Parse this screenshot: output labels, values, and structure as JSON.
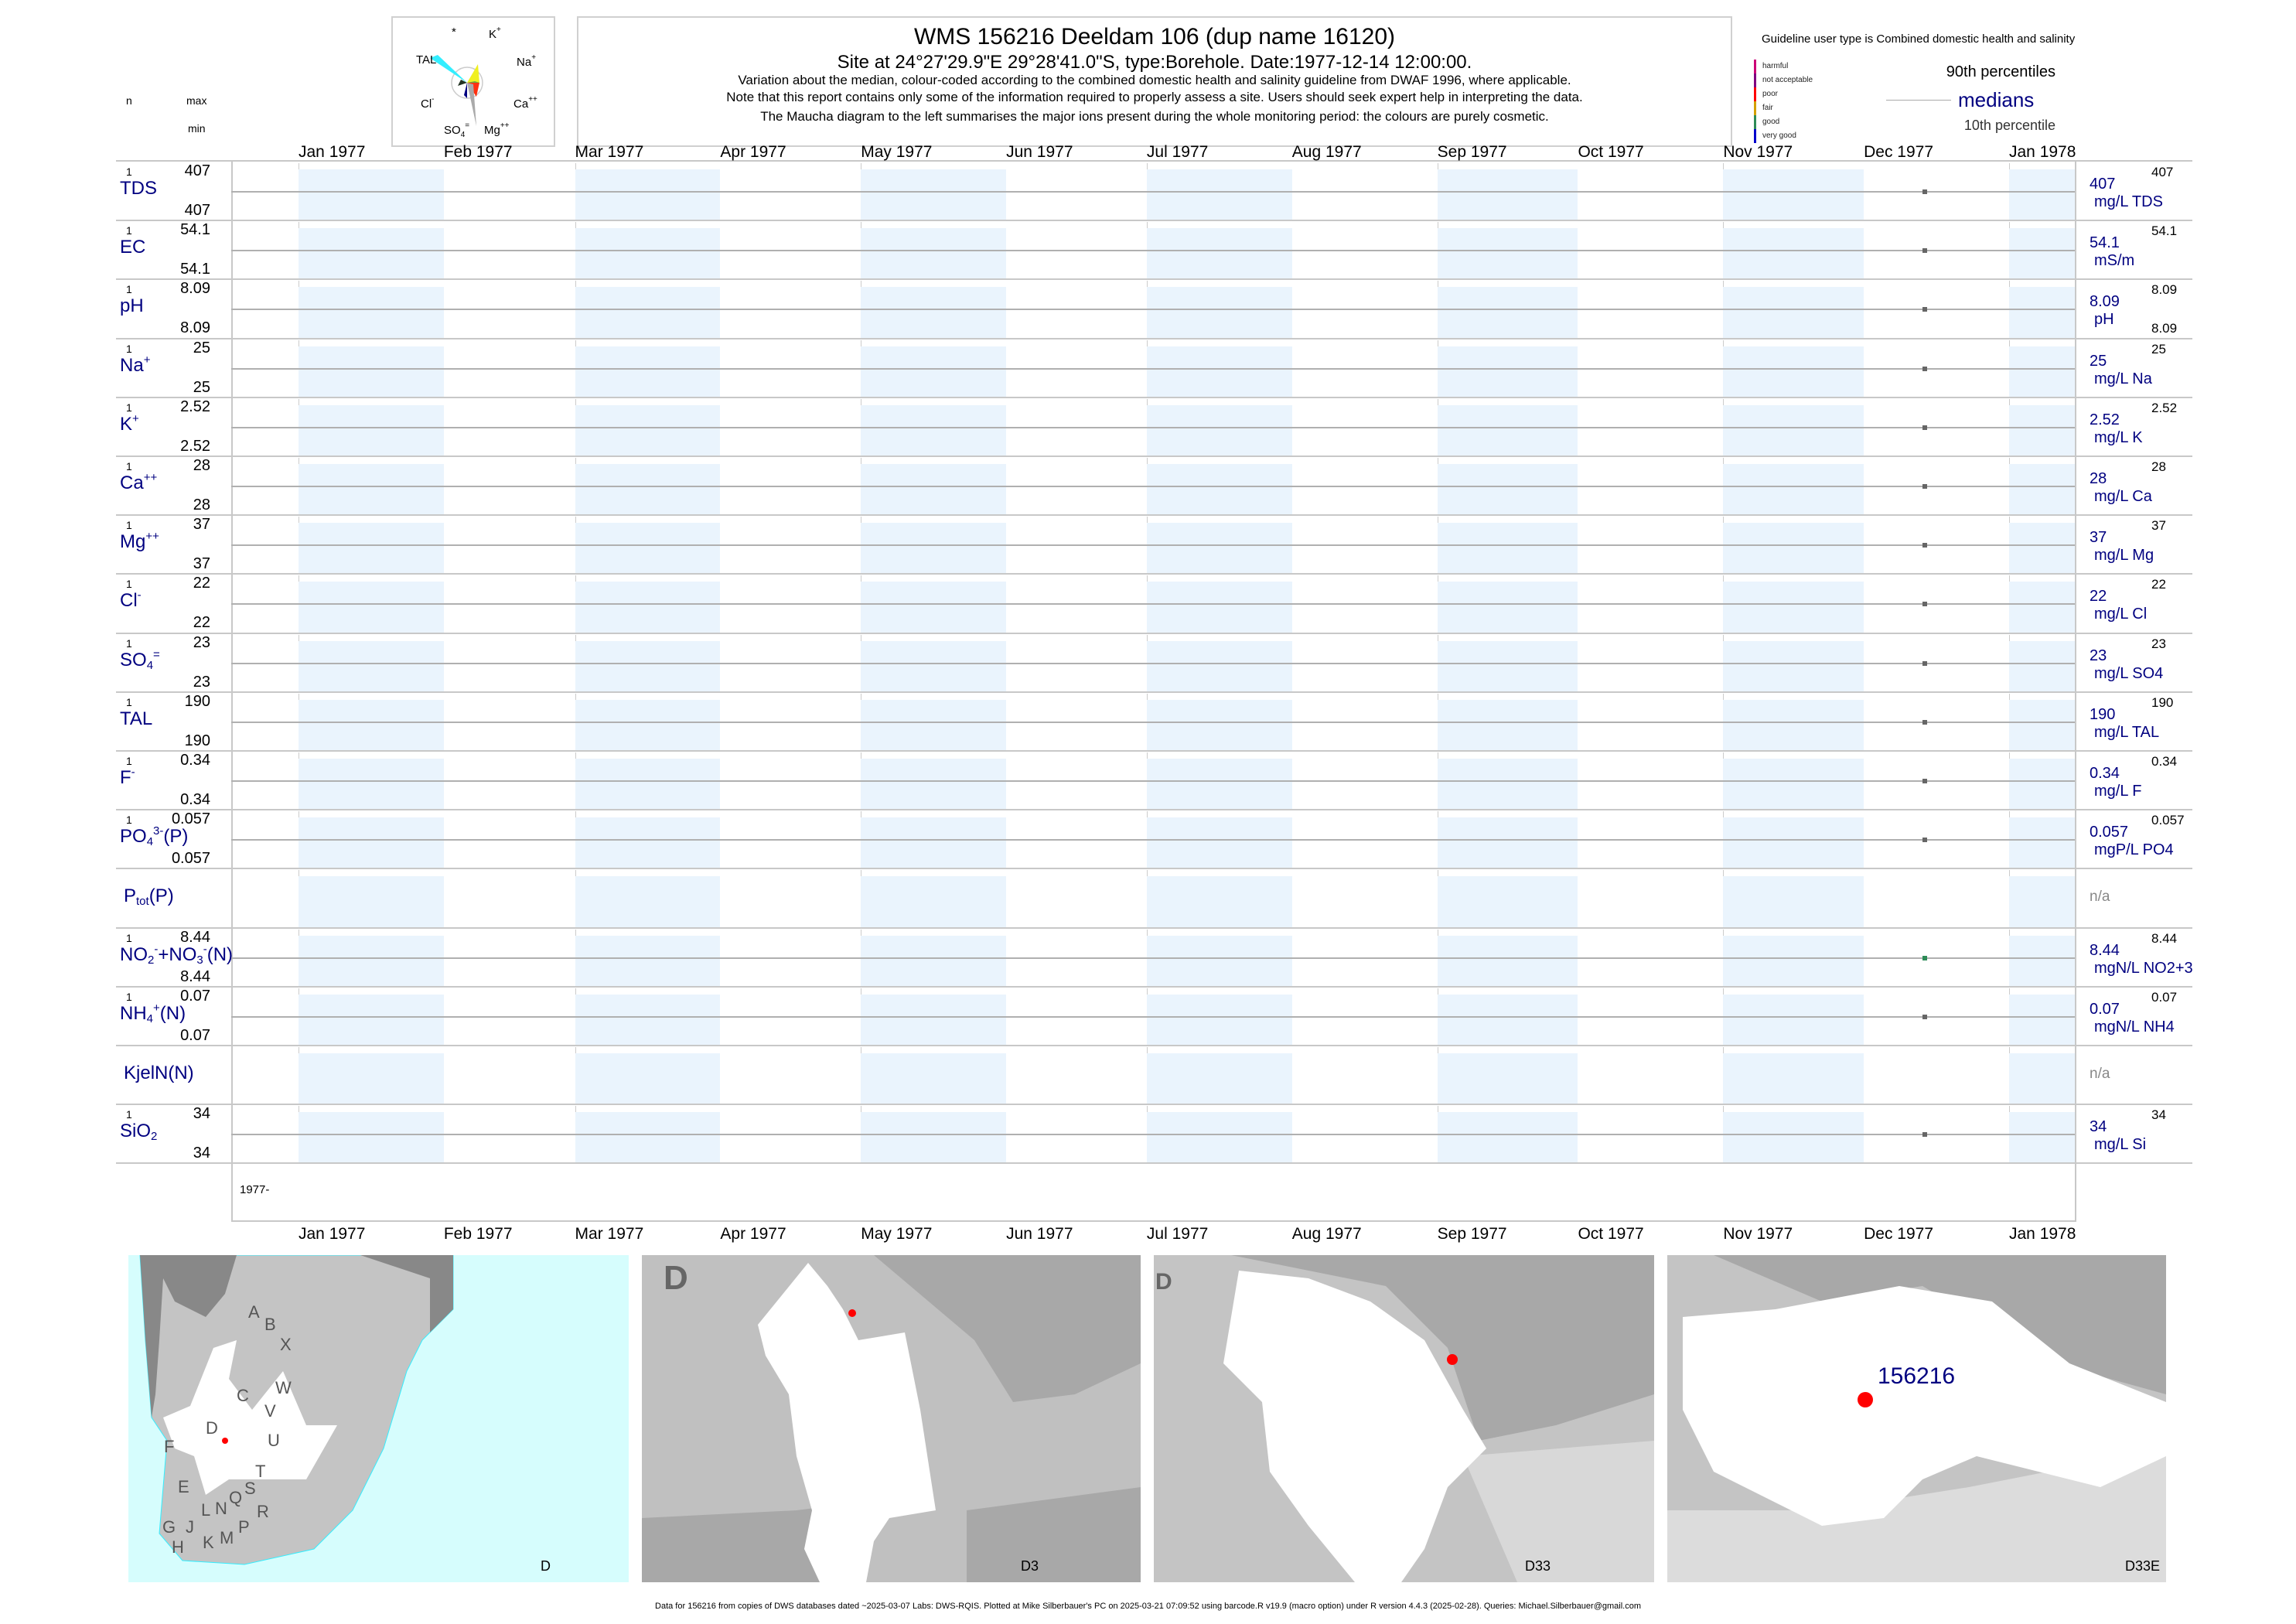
{
  "header": {
    "title": "WMS 156216  Deeldam 106 (dup name 16120)",
    "subtitle": "Site at 24°27'29.9\"E 29°28'41.0\"S, type:Borehole. Date:1977-12-14 12:00:00.",
    "note1": "Variation about the median,  colour-coded according to the combined domestic health and salinity guideline from DWAF 1996, where applicable.",
    "note2": "Note that this report contains only some of the information required to properly assess a site. Users should seek expert help in interpreting the data.",
    "note3": "The Maucha diagram to the left summarises the major ions present during the whole monitoring period: the colours are purely cosmetic."
  },
  "maucha": {
    "labels": [
      "*",
      "K",
      "TAL",
      "Na",
      "Cl",
      "Ca",
      "SO",
      "Mg"
    ],
    "sups": [
      "",
      "+",
      "",
      "+",
      "-",
      "++",
      "=",
      "++"
    ],
    "subs": [
      "",
      "",
      "",
      "",
      "",
      "",
      "4",
      ""
    ]
  },
  "legend": {
    "guideline": "Guideline user type is Combined domestic health and salinity",
    "classes": [
      {
        "label": "harmful",
        "color": "#cc0077"
      },
      {
        "label": "not acceptable",
        "color": "#800080"
      },
      {
        "label": "poor",
        "color": "#ff0000"
      },
      {
        "label": "fair",
        "color": "#d4a000"
      },
      {
        "label": "good",
        "color": "#2e8b57"
      },
      {
        "label": "very good",
        "color": "#0000cc"
      }
    ],
    "p90": "90th percentiles",
    "medians": "medians",
    "p10": "10th percentile"
  },
  "left_header": {
    "n": "n",
    "max": "max",
    "min": "min"
  },
  "chart_data": {
    "type": "scatter",
    "title": "WMS 156216  Deeldam 106 (dup name 16120)",
    "x_range": [
      "1977-01-01",
      "1978-01-15"
    ],
    "x_ticks": [
      "Jan 1977",
      "Feb 1977",
      "Mar 1977",
      "Apr 1977",
      "May 1977",
      "Jun 1977",
      "Jul 1977",
      "Aug 1977",
      "Sep 1977",
      "Oct 1977",
      "Nov 1977",
      "Dec 1977",
      "Jan 1978"
    ],
    "x_tick_days": [
      0,
      31,
      59,
      90,
      120,
      151,
      181,
      212,
      243,
      273,
      304,
      334,
      365
    ],
    "sample_day": 347,
    "period_label": "1977-",
    "series": [
      {
        "name": "TDS",
        "label": [
          [
            "t",
            "TDS"
          ]
        ],
        "n": "1",
        "max": "407",
        "min": "407",
        "median": "407",
        "unit": "mg/L TDS",
        "rmax": "407",
        "color": "#666666"
      },
      {
        "name": "EC",
        "label": [
          [
            "t",
            "EC"
          ]
        ],
        "n": "1",
        "max": "54.1",
        "min": "54.1",
        "median": "54.1",
        "unit": "mS/m",
        "rmax": "54.1",
        "color": "#666666"
      },
      {
        "name": "pH",
        "label": [
          [
            "t",
            "pH"
          ]
        ],
        "n": "1",
        "max": "8.09",
        "min": "8.09",
        "median": "8.09",
        "unit": "pH",
        "rmax": "8.09",
        "rmin": "8.09",
        "color": "#666666"
      },
      {
        "name": "Na",
        "label": [
          [
            "t",
            "Na"
          ],
          [
            "sup",
            "+"
          ]
        ],
        "n": "1",
        "max": "25",
        "min": "25",
        "median": "25",
        "unit": "mg/L Na",
        "rmax": "25",
        "color": "#666666"
      },
      {
        "name": "K",
        "label": [
          [
            "t",
            "K"
          ],
          [
            "sup",
            "+"
          ]
        ],
        "n": "1",
        "max": "2.52",
        "min": "2.52",
        "median": "2.52",
        "unit": "mg/L K",
        "rmax": "2.52",
        "color": "#666666"
      },
      {
        "name": "Ca",
        "label": [
          [
            "t",
            "Ca"
          ],
          [
            "sup",
            "++"
          ]
        ],
        "n": "1",
        "max": "28",
        "min": "28",
        "median": "28",
        "unit": "mg/L Ca",
        "rmax": "28",
        "color": "#666666"
      },
      {
        "name": "Mg",
        "label": [
          [
            "t",
            "Mg"
          ],
          [
            "sup",
            "++"
          ]
        ],
        "n": "1",
        "max": "37",
        "min": "37",
        "median": "37",
        "unit": "mg/L Mg",
        "rmax": "37",
        "color": "#666666"
      },
      {
        "name": "Cl",
        "label": [
          [
            "t",
            "Cl"
          ],
          [
            "sup",
            "-"
          ]
        ],
        "n": "1",
        "max": "22",
        "min": "22",
        "median": "22",
        "unit": "mg/L Cl",
        "rmax": "22",
        "color": "#666666"
      },
      {
        "name": "SO4",
        "label": [
          [
            "t",
            "SO"
          ],
          [
            "sub",
            "4"
          ],
          [
            "sup",
            "="
          ]
        ],
        "n": "1",
        "max": "23",
        "min": "23",
        "median": "23",
        "unit": "mg/L SO4",
        "rmax": "23",
        "color": "#666666"
      },
      {
        "name": "TAL",
        "label": [
          [
            "t",
            "TAL"
          ]
        ],
        "n": "1",
        "max": "190",
        "min": "190",
        "median": "190",
        "unit": "mg/L TAL",
        "rmax": "190",
        "color": "#666666"
      },
      {
        "name": "F",
        "label": [
          [
            "t",
            "F"
          ],
          [
            "sup",
            "-"
          ]
        ],
        "n": "1",
        "max": "0.34",
        "min": "0.34",
        "median": "0.34",
        "unit": "mg/L F",
        "rmax": "0.34",
        "color": "#666666"
      },
      {
        "name": "PO4",
        "label": [
          [
            "t",
            "PO"
          ],
          [
            "sub",
            "4"
          ],
          [
            "sup",
            "3-"
          ],
          [
            "t",
            "(P)"
          ]
        ],
        "n": "1",
        "max": "0.057",
        "min": "0.057",
        "median": "0.057",
        "unit": "mgP/L PO4",
        "rmax": "0.057",
        "color": "#666666"
      },
      {
        "name": "Ptot",
        "label": [
          [
            "t",
            "P"
          ],
          [
            "sub",
            "tot"
          ],
          [
            "t",
            "(P)"
          ]
        ],
        "na": "n/a"
      },
      {
        "name": "NO2+3",
        "label": [
          [
            "t",
            "NO"
          ],
          [
            "sub",
            "2"
          ],
          [
            "sup",
            "-"
          ],
          [
            "t",
            "+NO"
          ],
          [
            "sub",
            "3"
          ],
          [
            "sup",
            "-"
          ],
          [
            "t",
            "(N)"
          ]
        ],
        "n": "1",
        "max": "8.44",
        "min": "8.44",
        "median": "8.44",
        "unit": "mgN/L NO2+3",
        "rmax": "8.44",
        "color": "#2e8b57"
      },
      {
        "name": "NH4",
        "label": [
          [
            "t",
            "NH"
          ],
          [
            "sub",
            "4"
          ],
          [
            "sup",
            "+"
          ],
          [
            "t",
            "(N)"
          ]
        ],
        "n": "1",
        "max": "0.07",
        "min": "0.07",
        "median": "0.07",
        "unit": "mgN/L NH4",
        "rmax": "0.07",
        "color": "#666666"
      },
      {
        "name": "KjelN",
        "label": [
          [
            "t",
            "KjelN(N)"
          ]
        ],
        "na": "n/a"
      },
      {
        "name": "SiO2",
        "label": [
          [
            "t",
            "SiO"
          ],
          [
            "sub",
            "2"
          ]
        ],
        "n": "1",
        "max": "34",
        "min": "34",
        "median": "34",
        "unit": "mg/L Si",
        "rmax": "34",
        "color": "#666666"
      }
    ]
  },
  "maps": {
    "map1": {
      "caption": "D",
      "regions": [
        "A",
        "B",
        "X",
        "W",
        "C",
        "V",
        "D",
        "U",
        "F",
        "T",
        "E",
        "S",
        "Q",
        "N",
        "L",
        "R",
        "J",
        "G",
        "P",
        "H",
        "K",
        "M"
      ]
    },
    "map2": {
      "caption": "D3",
      "corner_letter": "D"
    },
    "map3": {
      "caption": "D33",
      "corner_letter": "D"
    },
    "map4": {
      "caption": "D33E",
      "site_label": "156216"
    }
  },
  "footer": "Data for 156216 from copies of DWS databases dated ~2025-03-07 Labs: DWS-RQIS. Plotted at Mike Silberbauer's PC on 2025-03-21 07:09:52 using barcode.R v19.9 (macro option) under R version 4.4.3 (2025-02-28). Queries: Michael.Silberbauer@gmail.com"
}
